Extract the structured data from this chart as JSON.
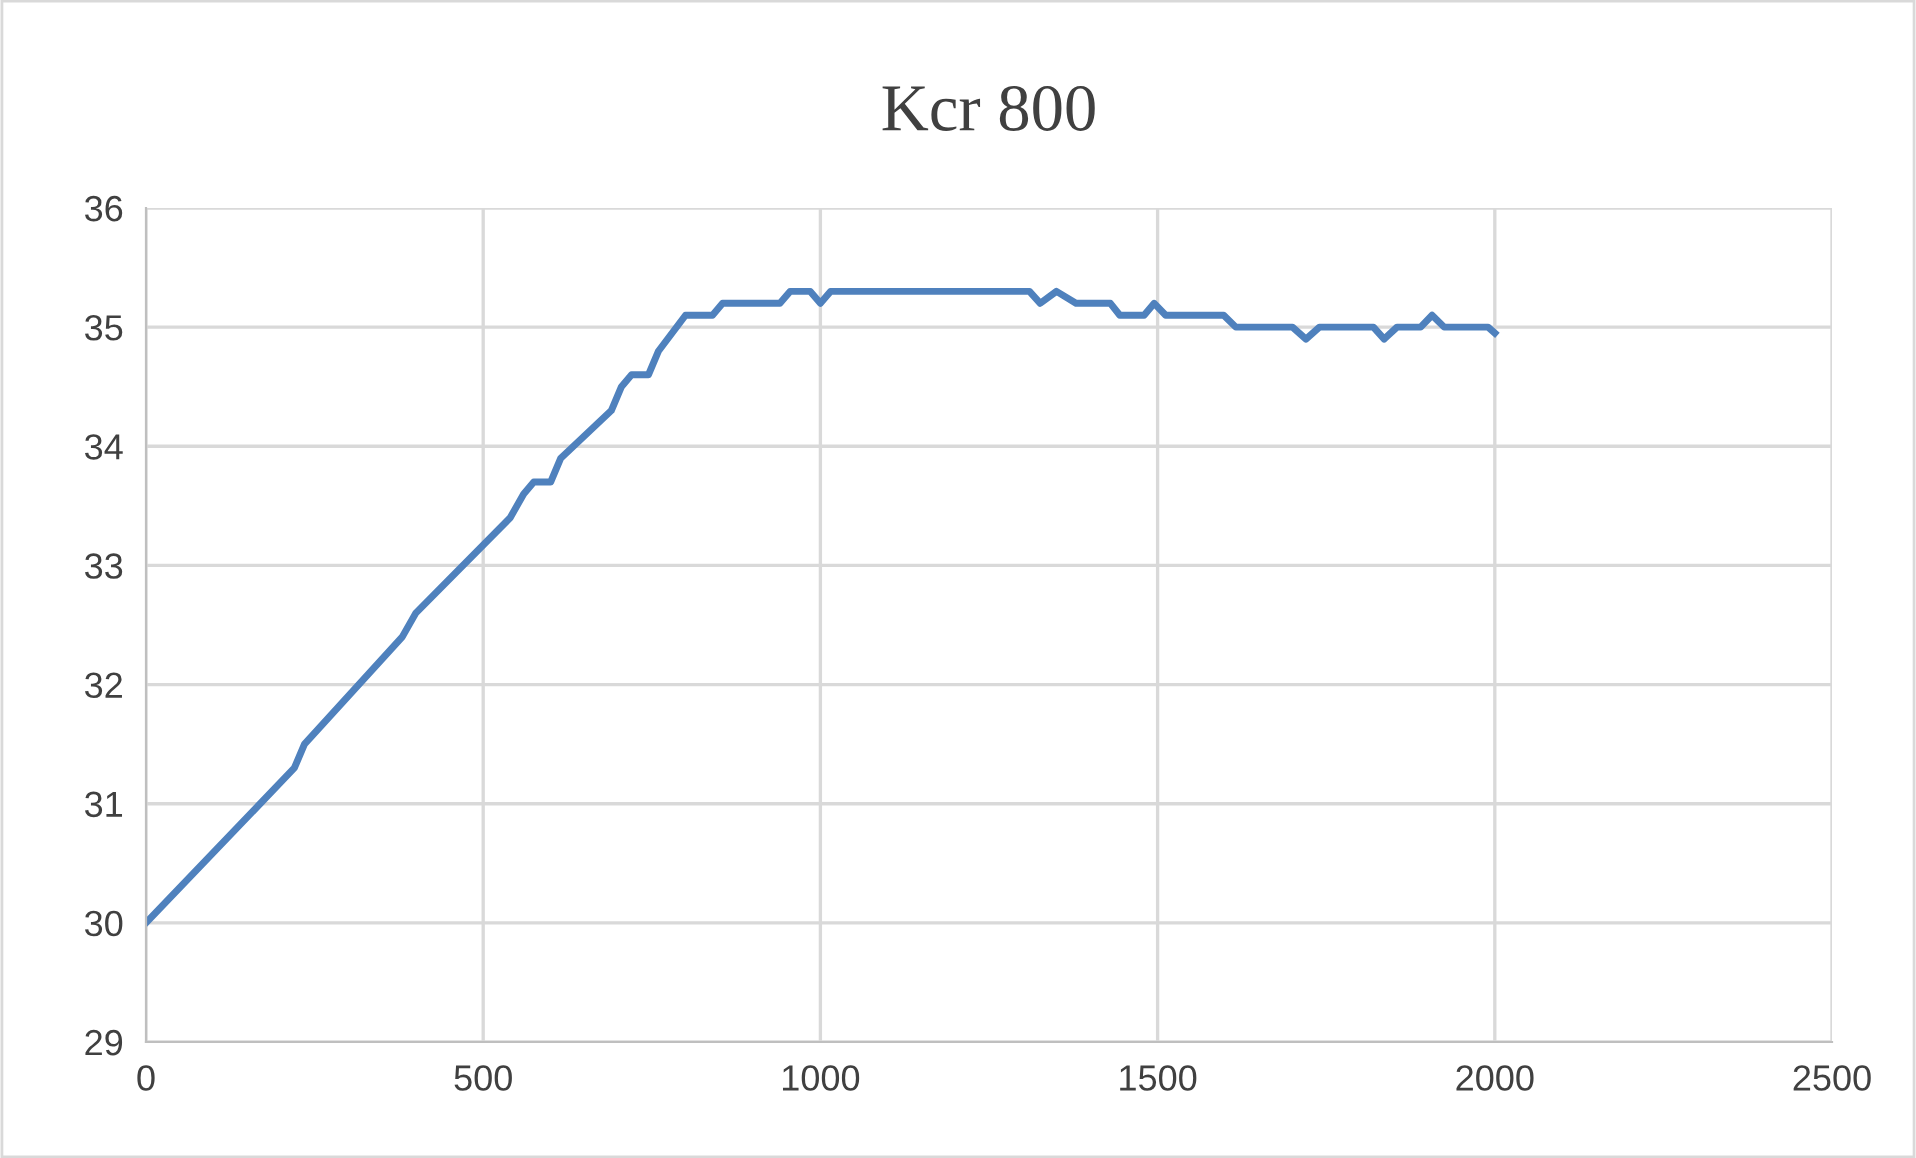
{
  "chart_data": {
    "type": "line",
    "title": "Kcr 800",
    "x": [
      0,
      220,
      235,
      380,
      400,
      540,
      560,
      575,
      600,
      615,
      690,
      705,
      720,
      745,
      760,
      800,
      840,
      855,
      940,
      955,
      985,
      1000,
      1015,
      1310,
      1326,
      1350,
      1379,
      1430,
      1444,
      1480,
      1495,
      1512,
      1598,
      1616,
      1700,
      1720,
      1740,
      1820,
      1836,
      1855,
      1890,
      1907,
      1925,
      1990,
      2000
    ],
    "series": [
      {
        "color": "#4f81bd",
        "values": [
          30,
          31.3,
          31.5,
          32.4,
          32.6,
          33.4,
          33.6,
          33.7,
          33.7,
          33.9,
          34.3,
          34.5,
          34.6,
          34.6,
          34.8,
          35.1,
          35.1,
          35.2,
          35.2,
          35.3,
          35.3,
          35.2,
          35.3,
          35.3,
          35.2,
          35.3,
          35.2,
          35.2,
          35.1,
          35.1,
          35.2,
          35.1,
          35.1,
          35.0,
          35.0,
          34.9,
          35.0,
          35.0,
          34.9,
          35.0,
          35.0,
          35.1,
          35.0,
          35.0,
          34.95
        ]
      }
    ],
    "xlim": [
      0,
      2500
    ],
    "xticks": [
      0,
      500,
      1000,
      1500,
      2000,
      2500
    ],
    "ylim": [
      29,
      36
    ],
    "yticks": [
      29,
      30,
      31,
      32,
      33,
      34,
      35,
      36
    ],
    "grid": true,
    "marker": "none",
    "line_style": "solid",
    "legend": false
  }
}
